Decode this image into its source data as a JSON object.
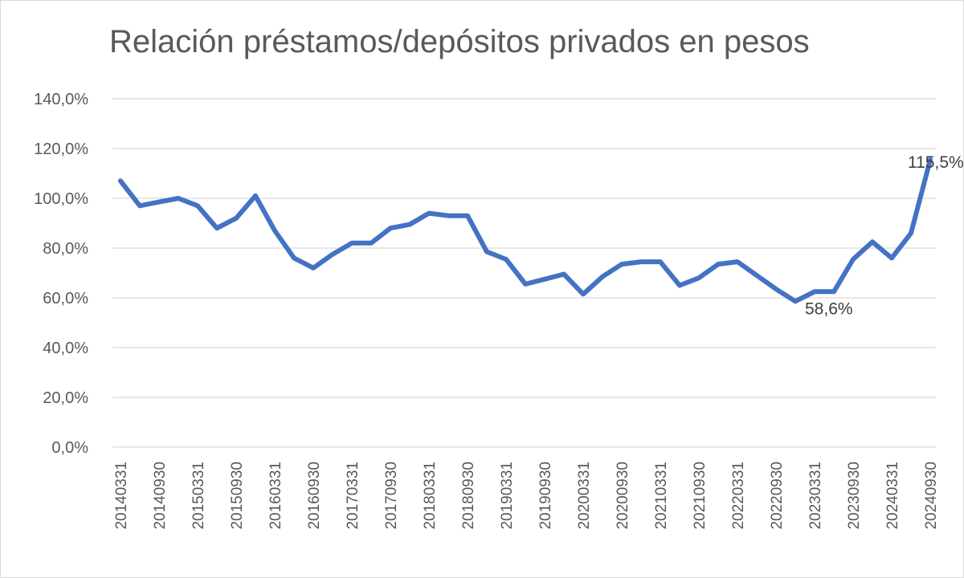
{
  "chart_data": {
    "type": "line",
    "title": "Relación préstamos/depósitos privados en pesos",
    "xlabel": "",
    "ylabel": "",
    "ylim": [
      0,
      140
    ],
    "y_ticks": [
      "0,0%",
      "20,0%",
      "40,0%",
      "60,0%",
      "80,0%",
      "100,0%",
      "120,0%",
      "140,0%"
    ],
    "y_tick_values": [
      0,
      20,
      40,
      60,
      80,
      100,
      120,
      140
    ],
    "grid": true,
    "legend": "none",
    "line_color": "#4472C4",
    "x": [
      "20140331",
      "20140630",
      "20140930",
      "20141231",
      "20150331",
      "20150630",
      "20150930",
      "20151231",
      "20160331",
      "20160630",
      "20160930",
      "20161231",
      "20170331",
      "20170630",
      "20170930",
      "20171231",
      "20180331",
      "20180630",
      "20180930",
      "20181231",
      "20190331",
      "20190630",
      "20190930",
      "20191231",
      "20200331",
      "20200630",
      "20200930",
      "20201231",
      "20210331",
      "20210630",
      "20210930",
      "20211231",
      "20220331",
      "20220630",
      "20220930",
      "20221231",
      "20230331",
      "20230630",
      "20230930",
      "20231231",
      "20240331",
      "20240630",
      "20240930"
    ],
    "x_tick_labels": [
      "20140331",
      "20140930",
      "20150331",
      "20150930",
      "20160331",
      "20160930",
      "20170331",
      "20170930",
      "20180331",
      "20180930",
      "20190331",
      "20190930",
      "20200331",
      "20200930",
      "20210331",
      "20210930",
      "20220331",
      "20220930",
      "20230331",
      "20230930",
      "20240331",
      "20240930"
    ],
    "series": [
      {
        "values": [
          107.0,
          97.0,
          98.5,
          100.0,
          97.0,
          88.0,
          92.0,
          101.0,
          87.0,
          76.0,
          72.0,
          77.5,
          82.0,
          82.0,
          88.0,
          89.5,
          94.0,
          93.0,
          93.0,
          78.5,
          75.5,
          65.5,
          67.5,
          69.5,
          61.5,
          68.5,
          73.5,
          74.5,
          74.5,
          65.0,
          68.0,
          73.5,
          74.5,
          69.0,
          63.5,
          58.6,
          62.5,
          62.5,
          75.5,
          82.5,
          76.0,
          86.0,
          115.5
        ]
      }
    ],
    "annotations": [
      {
        "label": "58,6%",
        "index": 35
      },
      {
        "label": "115,5%",
        "index": 42
      }
    ]
  }
}
